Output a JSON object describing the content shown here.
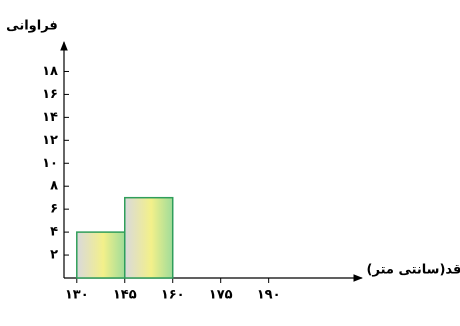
{
  "chart_data": {
    "type": "histogram",
    "y_label": "فراوانی",
    "x_label": "قد(سانتی متر)",
    "bins": [
      130,
      145,
      160
    ],
    "values": [
      4,
      7
    ],
    "color": "#2f9e5a",
    "xlim": [
      126,
      217
    ],
    "xticks": [
      {
        "value": 130,
        "label": "۱۳۰"
      },
      {
        "value": 145,
        "label": "۱۴۵"
      },
      {
        "value": 160,
        "label": "۱۶۰"
      },
      {
        "value": 175,
        "label": "۱۷۵"
      },
      {
        "value": 190,
        "label": "۱۹۰"
      }
    ],
    "ylim": [
      0,
      19
    ],
    "yticks": [
      {
        "value": 2,
        "label": "۲"
      },
      {
        "value": 4,
        "label": "۴"
      },
      {
        "value": 6,
        "label": "۶"
      },
      {
        "value": 8,
        "label": "۸"
      },
      {
        "value": 10,
        "label": "۱۰"
      },
      {
        "value": 12,
        "label": "۱۲"
      },
      {
        "value": 14,
        "label": "۱۴"
      },
      {
        "value": 16,
        "label": "۱۶"
      },
      {
        "value": 18,
        "label": "۱۸"
      }
    ]
  }
}
